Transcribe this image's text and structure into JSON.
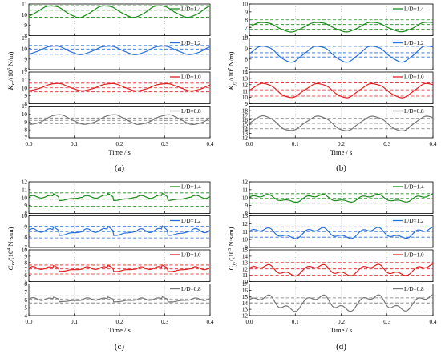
{
  "chart_data": [
    {
      "type": "line",
      "caption": "(a)",
      "ylabel": "K_xx /(10^6 N/m)",
      "ylabel_main": "K",
      "ylabel_sub": "xx",
      "ylabel_unit_pre": "/(10",
      "ylabel_unit_exp": "6",
      "ylabel_unit_post": " N/m)",
      "xlabel": "Time / s",
      "xlim": [
        0.0,
        0.4
      ],
      "xticks": [
        "0.0",
        "0.1",
        "0.2",
        "0.3",
        "0.4"
      ],
      "subplots": [
        {
          "legend": "L/D=1.4",
          "color": "#1a8a1a",
          "ylim": [
            8,
            11
          ],
          "yticks": [
            "8",
            "9",
            "10",
            "11"
          ],
          "shape": "smooth",
          "mean": 10.3,
          "amplitude": 0.55,
          "period": 0.12,
          "phase": 0.02,
          "dashed": [
            10.85,
            10.4,
            9.75
          ]
        },
        {
          "legend": "L/D=1.2",
          "color": "#2a6fd6",
          "ylim": [
            8,
            11
          ],
          "yticks": [
            "8",
            "9",
            "10",
            "11"
          ],
          "shape": "smooth",
          "mean": 9.85,
          "amplitude": 0.4,
          "period": 0.12,
          "phase": 0.025,
          "dashed": [
            10.3,
            9.95,
            9.45
          ]
        },
        {
          "legend": "L/D=1.0",
          "color": "#e02020",
          "ylim": [
            8,
            12
          ],
          "yticks": [
            "8",
            "9",
            "10",
            "11",
            "12"
          ],
          "shape": "smooth",
          "mean": 10.1,
          "amplitude": 0.45,
          "period": 0.12,
          "phase": 0.03,
          "dashed": [
            10.6,
            10.0,
            9.5
          ]
        },
        {
          "legend": "L/D=0.8",
          "color": "#777777",
          "ylim": [
            7,
            11
          ],
          "yticks": [
            "7",
            "8",
            "9",
            "10",
            "11"
          ],
          "shape": "smooth",
          "mean": 9.3,
          "amplitude": 0.6,
          "period": 0.12,
          "phase": 0.035,
          "dashed": [
            9.5,
            9.2,
            8.8
          ]
        }
      ]
    },
    {
      "type": "line",
      "caption": "(b)",
      "ylabel": "K_yy /(10^7 N/m)",
      "ylabel_main": "K",
      "ylabel_sub": "yy",
      "ylabel_unit_pre": "/(10",
      "ylabel_unit_exp": "7",
      "ylabel_unit_post": " N/m)",
      "xlabel": "Time / s",
      "xlim": [
        0.0,
        0.4
      ],
      "xticks": [
        "0.0",
        "0.1",
        "0.2",
        "0.3",
        "0.4"
      ],
      "subplots": [
        {
          "legend": "L/D=1.4",
          "color": "#1a8a1a",
          "ylim": [
            6,
            10
          ],
          "yticks": [
            "6",
            "7",
            "8",
            "9",
            "10"
          ],
          "shape": "smooth",
          "mean": 7.1,
          "amplitude": 0.6,
          "period": 0.12,
          "phase": 0.0,
          "dashed": [
            8.0,
            7.4,
            6.8
          ]
        },
        {
          "legend": "L/D=1.2",
          "color": "#2a6fd6",
          "ylim": [
            7,
            10
          ],
          "yticks": [
            "7",
            "8",
            "9",
            "10"
          ],
          "shape": "smooth",
          "mean": 8.5,
          "amplitude": 0.75,
          "period": 0.12,
          "phase": 0.0,
          "dashed": [
            9.2,
            8.6,
            8.2
          ]
        },
        {
          "legend": "L/D=1.0",
          "color": "#e02020",
          "ylim": [
            9,
            14
          ],
          "yticks": [
            "9",
            "10",
            "11",
            "12",
            "13",
            "14"
          ],
          "shape": "smooth",
          "mean": 11.1,
          "amplitude": 1.1,
          "period": 0.12,
          "phase": 0.0,
          "dashed": [
            12.3,
            11.2,
            10.2
          ]
        },
        {
          "legend": "L/D=0.8",
          "color": "#777777",
          "ylim": [
            12,
            19
          ],
          "yticks": [
            "12",
            "13",
            "14",
            "15",
            "16",
            "17",
            "18"
          ],
          "shape": "smooth",
          "mean": 15.2,
          "amplitude": 1.6,
          "period": 0.12,
          "phase": 0.0,
          "dashed": [
            16.3,
            15.2,
            14.0
          ]
        }
      ]
    },
    {
      "type": "line",
      "caption": "(c)",
      "ylabel": "C_xx /(10^4 N·s/m)",
      "ylabel_main": "C",
      "ylabel_sub": "xx",
      "ylabel_unit_pre": "/(10",
      "ylabel_unit_exp": "4",
      "ylabel_unit_post": " N·s/m)",
      "xlabel": "Time / s",
      "xlim": [
        0.0,
        0.4
      ],
      "xticks": [
        "0.0",
        "0.1",
        "0.2",
        "0.3",
        "0.4"
      ],
      "subplots": [
        {
          "legend": "L/D=1.4",
          "color": "#1a8a1a",
          "ylim": [
            8,
            12
          ],
          "yticks": [
            "8",
            "9",
            "10",
            "11",
            "12"
          ],
          "shape": "spiky",
          "mean": 10.0,
          "amplitude": 0.5,
          "period": 0.12,
          "phase": 0.0,
          "dashed": [
            10.6,
            9.8,
            8.9
          ]
        },
        {
          "legend": "L/D=1.2",
          "color": "#2a6fd6",
          "ylim": [
            7,
            10
          ],
          "yticks": [
            "7",
            "8",
            "9",
            "10"
          ],
          "shape": "spiky",
          "mean": 8.5,
          "amplitude": 0.5,
          "period": 0.12,
          "phase": 0.0,
          "dashed": [
            9.0,
            8.5,
            7.9
          ]
        },
        {
          "legend": "L/D=1.0",
          "color": "#e02020",
          "ylim": [
            5,
            10
          ],
          "yticks": [
            "5",
            "6",
            "7",
            "8",
            "9",
            "10"
          ],
          "shape": "spiky",
          "mean": 7.0,
          "amplitude": 0.6,
          "period": 0.12,
          "phase": 0.0,
          "dashed": [
            7.6,
            7.0,
            6.2
          ]
        },
        {
          "legend": "L/D=0.8",
          "color": "#777777",
          "ylim": [
            4,
            8
          ],
          "yticks": [
            "4",
            "5",
            "6",
            "7",
            "8"
          ],
          "shape": "spiky",
          "mean": 6.0,
          "amplitude": 0.4,
          "period": 0.12,
          "phase": 0.0,
          "dashed": [
            6.5,
            6.1,
            5.6
          ]
        }
      ]
    },
    {
      "type": "line",
      "caption": "(d)",
      "ylabel": "C_yy /(10^5 N·s/m)",
      "ylabel_main": "C",
      "ylabel_sub": "yy",
      "ylabel_unit_pre": "/(10",
      "ylabel_unit_exp": "5",
      "ylabel_unit_post": " N·s/m)",
      "xlabel": "Time / s",
      "xlim": [
        0.0,
        0.4
      ],
      "xticks": [
        "0.0",
        "0.1",
        "0.2",
        "0.3",
        "0.4"
      ],
      "subplots": [
        {
          "legend": "L/D=1.4",
          "color": "#1a8a1a",
          "ylim": [
            8,
            12
          ],
          "yticks": [
            "8",
            "9",
            "10",
            "11",
            "12"
          ],
          "shape": "bumpy",
          "mean": 9.9,
          "amplitude": 0.5,
          "period": 0.12,
          "phase": 0.0,
          "dashed": [
            10.5,
            9.9,
            9.3
          ]
        },
        {
          "legend": "L/D=1.2",
          "color": "#2a6fd6",
          "ylim": [
            9,
            13
          ],
          "yticks": [
            "9",
            "10",
            "11",
            "12",
            "13"
          ],
          "shape": "bumpy",
          "mean": 10.8,
          "amplitude": 0.7,
          "period": 0.12,
          "phase": 0.0,
          "dashed": [
            11.6,
            11.0,
            10.3
          ]
        },
        {
          "legend": "L/D=1.0",
          "color": "#e02020",
          "ylim": [
            10,
            15
          ],
          "yticks": [
            "10",
            "11",
            "12",
            "13",
            "14",
            "15"
          ],
          "shape": "bumpy",
          "mean": 11.8,
          "amplitude": 0.9,
          "period": 0.12,
          "phase": 0.0,
          "dashed": [
            13.0,
            12.0,
            11.0
          ]
        },
        {
          "legend": "L/D=0.8",
          "color": "#777777",
          "ylim": [
            12,
            17
          ],
          "yticks": [
            "12",
            "13",
            "14",
            "15",
            "16",
            "17"
          ],
          "shape": "bumpy",
          "mean": 14.0,
          "amplitude": 1.3,
          "period": 0.12,
          "phase": 0.0,
          "dashed": [
            14.8,
            14.0,
            13.2
          ]
        }
      ]
    }
  ]
}
